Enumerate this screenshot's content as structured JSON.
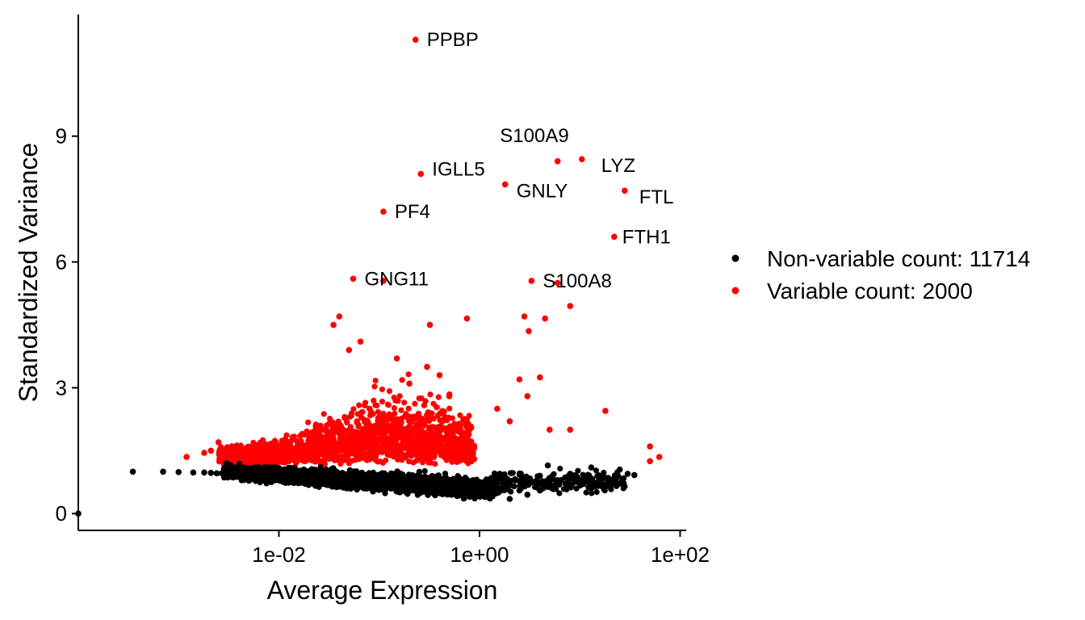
{
  "chart_data": {
    "type": "scatter",
    "title": "",
    "xlabel": "Average Expression",
    "ylabel": "Standardized Variance",
    "x_scale": "log10",
    "xlim": [
      0.0001,
      115
    ],
    "ylim": [
      -0.4,
      11.9
    ],
    "x_ticks": [
      {
        "value": 0.01,
        "label": "1e-02"
      },
      {
        "value": 1,
        "label": "1e+00"
      },
      {
        "value": 100,
        "label": "1e+02"
      }
    ],
    "y_ticks": [
      {
        "value": 0,
        "label": "0"
      },
      {
        "value": 3,
        "label": "3"
      },
      {
        "value": 6,
        "label": "6"
      },
      {
        "value": 9,
        "label": "9"
      }
    ],
    "grid": false,
    "legend": {
      "position": "right",
      "entries": [
        {
          "label": "Non-variable count: 11714",
          "color": "#000000"
        },
        {
          "label": "Variable count: 2000",
          "color": "#ff0000"
        }
      ]
    },
    "series": [
      {
        "name": "Non-variable",
        "color": "#000000",
        "count": 11714,
        "points": [
          [
            0.0001,
            0.0
          ],
          [
            0.00035,
            1.0
          ],
          [
            0.0007,
            1.0
          ],
          [
            0.001,
            0.99
          ],
          [
            0.0014,
            0.98
          ],
          [
            0.0018,
            0.98
          ],
          [
            0.0021,
            0.97
          ],
          [
            0.0024,
            0.96
          ],
          [
            0.0027,
            0.96
          ],
          [
            0.003,
            0.97
          ],
          [
            0.003,
            1.2
          ],
          [
            0.0035,
            1.1
          ],
          [
            0.004,
            1.05
          ],
          [
            0.2,
            0.75
          ],
          [
            0.5,
            0.6
          ],
          [
            0.8,
            0.4
          ],
          [
            1.0,
            0.5
          ],
          [
            1.5,
            0.6
          ],
          [
            2.0,
            0.35
          ],
          [
            2.5,
            0.55
          ],
          [
            3.0,
            0.45
          ],
          [
            4.0,
            0.9
          ],
          [
            4.0,
            0.55
          ],
          [
            4.8,
            1.15
          ],
          [
            5.0,
            0.85
          ],
          [
            5.5,
            0.6
          ],
          [
            6.5,
            0.8
          ],
          [
            8.0,
            0.95
          ],
          [
            10.0,
            0.75
          ],
          [
            13.0,
            1.1
          ],
          [
            15.0,
            0.9
          ],
          [
            18.0,
            0.85
          ],
          [
            20.0,
            0.7
          ],
          [
            25.0,
            1.05
          ],
          [
            30.0,
            0.95
          ],
          [
            35.0,
            0.92
          ]
        ]
      },
      {
        "name": "Variable",
        "color": "#ff0000",
        "count": 2000,
        "points": [
          [
            0.23,
            11.3
          ],
          [
            0.26,
            8.1
          ],
          [
            0.11,
            7.2
          ],
          [
            1.8,
            7.85
          ],
          [
            6.0,
            8.4
          ],
          [
            10.5,
            8.45
          ],
          [
            28.0,
            7.7
          ],
          [
            22.0,
            6.6
          ],
          [
            0.055,
            5.6
          ],
          [
            0.11,
            5.55
          ],
          [
            3.3,
            5.55
          ],
          [
            6.0,
            5.5
          ],
          [
            0.04,
            4.7
          ],
          [
            0.035,
            4.5
          ],
          [
            0.065,
            4.1
          ],
          [
            0.05,
            3.9
          ],
          [
            0.32,
            4.5
          ],
          [
            0.75,
            4.65
          ],
          [
            2.8,
            4.7
          ],
          [
            4.5,
            4.65
          ],
          [
            3.1,
            4.35
          ],
          [
            8.0,
            4.95
          ],
          [
            0.015,
            1.3
          ],
          [
            0.02,
            1.5
          ],
          [
            0.025,
            1.72
          ],
          [
            0.03,
            2.1
          ],
          [
            0.04,
            1.65
          ],
          [
            0.06,
            2.2
          ],
          [
            0.08,
            2.5
          ],
          [
            0.1,
            2.3
          ],
          [
            0.15,
            3.7
          ],
          [
            0.2,
            3.1
          ],
          [
            0.3,
            3.5
          ],
          [
            0.4,
            3.3
          ],
          [
            0.5,
            2.8
          ],
          [
            1.5,
            2.5
          ],
          [
            2.0,
            2.2
          ],
          [
            2.5,
            3.2
          ],
          [
            3.0,
            2.8
          ],
          [
            4.0,
            3.25
          ],
          [
            5.0,
            2.0
          ],
          [
            8.0,
            2.0
          ],
          [
            18.0,
            2.45
          ],
          [
            50.0,
            1.6
          ],
          [
            50.0,
            1.25
          ],
          [
            62.0,
            1.35
          ],
          [
            0.0021,
            1.5
          ],
          [
            0.0025,
            1.7
          ],
          [
            0.0018,
            1.45
          ],
          [
            0.0012,
            1.35
          ]
        ]
      }
    ],
    "annotations": [
      {
        "label": "PPBP",
        "x": 0.23,
        "y": 11.3
      },
      {
        "label": "S100A9",
        "x": 6.0,
        "y": 8.4
      },
      {
        "label": "LYZ",
        "x": 10.5,
        "y": 8.45
      },
      {
        "label": "IGLL5",
        "x": 0.26,
        "y": 8.1
      },
      {
        "label": "GNLY",
        "x": 1.8,
        "y": 7.85
      },
      {
        "label": "FTL",
        "x": 28.0,
        "y": 7.7
      },
      {
        "label": "PF4",
        "x": 0.11,
        "y": 7.2
      },
      {
        "label": "FTH1",
        "x": 22.0,
        "y": 6.6
      },
      {
        "label": "GNG11",
        "x": 0.055,
        "y": 5.6
      },
      {
        "label": "S100A8",
        "x": 3.3,
        "y": 5.55
      }
    ]
  }
}
